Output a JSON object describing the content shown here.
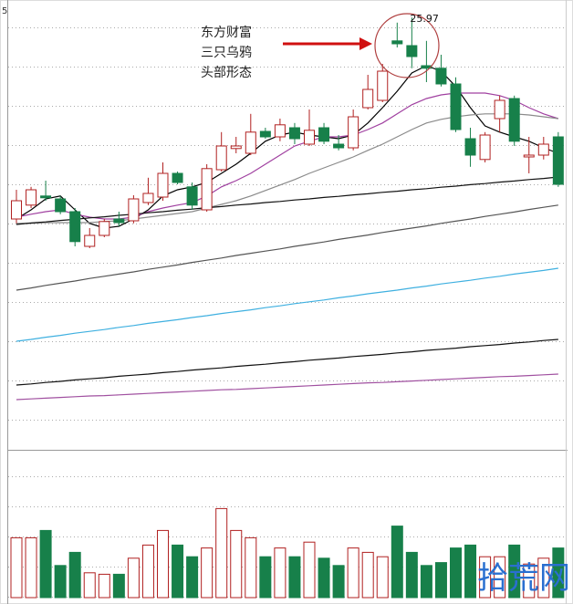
{
  "chart_data": {
    "type": "candlestick",
    "corner_label": "5",
    "annotations": [
      "东方财富",
      "三只乌鸦",
      "头部形态"
    ],
    "watermark": "拾荒网",
    "up_color": "#b02020",
    "down_color": "#17804a",
    "ylim": [
      14.2,
      26.2
    ],
    "vlim": [
      0,
      100
    ],
    "grid": true,
    "open": [
      20.45,
      20.83,
      21.08,
      21.0,
      20.65,
      19.7,
      20.0,
      20.45,
      20.4,
      20.9,
      21.05,
      21.7,
      21.33,
      20.7,
      21.8,
      22.38,
      22.25,
      22.85,
      22.7,
      22.95,
      22.5,
      22.95,
      22.5,
      22.4,
      23.5,
      23.7,
      25.33,
      25.2,
      24.65,
      24.58,
      24.15,
      22.65,
      22.08,
      23.2,
      23.75,
      22.15,
      22.2,
      22.7
    ],
    "high": [
      21.25,
      21.33,
      21.5,
      21.08,
      20.75,
      20.2,
      20.45,
      20.65,
      21.1,
      21.58,
      22.0,
      21.75,
      21.45,
      21.95,
      22.83,
      22.7,
      23.33,
      22.95,
      23.2,
      23.08,
      23.45,
      23.08,
      22.75,
      23.45,
      24.4,
      24.7,
      25.83,
      25.97,
      25.33,
      24.95,
      24.33,
      22.95,
      22.83,
      23.83,
      23.83,
      22.7,
      22.7,
      22.83
    ],
    "low": [
      20.33,
      20.75,
      20.95,
      20.58,
      19.7,
      19.65,
      19.95,
      20.25,
      20.33,
      20.83,
      20.95,
      21.4,
      20.7,
      20.65,
      21.75,
      22.25,
      22.2,
      22.65,
      22.58,
      22.5,
      22.45,
      22.5,
      22.33,
      22.33,
      23.45,
      23.65,
      25.15,
      24.58,
      24.2,
      24.08,
      22.83,
      21.88,
      22.0,
      22.83,
      22.45,
      21.7,
      22.08,
      21.33
    ],
    "close": [
      20.95,
      21.25,
      21.03,
      20.65,
      19.83,
      20.0,
      20.38,
      20.35,
      21.0,
      21.15,
      21.7,
      21.45,
      20.83,
      21.83,
      22.45,
      22.45,
      22.83,
      22.7,
      23.03,
      22.65,
      22.88,
      22.58,
      22.4,
      23.25,
      24.0,
      24.5,
      25.25,
      24.9,
      24.58,
      24.15,
      22.9,
      22.2,
      22.75,
      23.7,
      22.58,
      22.2,
      22.5,
      21.4
    ],
    "volume": [
      41,
      41,
      46,
      22,
      31,
      17,
      16,
      16,
      27,
      36,
      46,
      36,
      28,
      34,
      61,
      46,
      41,
      28,
      34,
      28,
      38,
      27,
      22,
      34,
      31,
      28,
      49,
      31,
      22,
      24,
      34,
      36,
      28,
      28,
      36,
      23,
      27,
      34
    ],
    "series": [
      {
        "color": "#000000",
        "values": [
          20.45,
          20.7,
          21.0,
          21.08,
          20.7,
          20.33,
          20.2,
          20.25,
          20.45,
          20.7,
          21.08,
          21.25,
          21.33,
          21.45,
          21.7,
          21.95,
          22.25,
          22.58,
          22.75,
          22.83,
          22.75,
          22.7,
          22.65,
          22.75,
          23.08,
          23.5,
          23.95,
          24.45,
          24.65,
          24.5,
          24.08,
          23.5,
          23.0,
          22.83,
          22.7,
          22.58,
          22.4,
          22.25
        ]
      },
      {
        "color": "#a040a0",
        "values": [
          20.5,
          20.58,
          20.65,
          20.7,
          20.58,
          20.5,
          20.45,
          20.45,
          20.5,
          20.65,
          20.75,
          20.83,
          20.9,
          21.08,
          21.33,
          21.5,
          21.7,
          21.95,
          22.2,
          22.45,
          22.58,
          22.7,
          22.7,
          22.75,
          22.9,
          23.08,
          23.33,
          23.58,
          23.75,
          23.85,
          23.9,
          23.9,
          23.9,
          23.83,
          23.7,
          23.5,
          23.33,
          23.2
        ]
      },
      {
        "color": "#8a8a8a",
        "values": [
          20.33,
          20.33,
          20.35,
          20.35,
          20.35,
          20.35,
          20.38,
          20.4,
          20.45,
          20.5,
          20.55,
          20.6,
          20.65,
          20.75,
          20.85,
          20.95,
          21.08,
          21.23,
          21.38,
          21.53,
          21.7,
          21.85,
          22.0,
          22.15,
          22.33,
          22.5,
          22.7,
          22.9,
          23.08,
          23.18,
          23.25,
          23.3,
          23.33,
          23.33,
          23.33,
          23.3,
          23.25,
          23.2
        ]
      },
      {
        "color": "#111111",
        "values": [
          20.3,
          20.34,
          20.37,
          20.41,
          20.44,
          20.48,
          20.51,
          20.55,
          20.58,
          20.62,
          20.65,
          20.69,
          20.72,
          20.76,
          20.79,
          20.83,
          20.86,
          20.9,
          20.93,
          20.97,
          21.0,
          21.04,
          21.07,
          21.11,
          21.14,
          21.18,
          21.21,
          21.25,
          21.28,
          21.32,
          21.35,
          21.39,
          21.42,
          21.46,
          21.49,
          21.53,
          21.56,
          21.6
        ]
      },
      {
        "color": "#555555",
        "values": [
          18.5,
          18.56,
          18.63,
          18.69,
          18.75,
          18.82,
          18.88,
          18.94,
          19.0,
          19.07,
          19.13,
          19.19,
          19.26,
          19.32,
          19.38,
          19.45,
          19.51,
          19.57,
          19.63,
          19.7,
          19.76,
          19.82,
          19.89,
          19.95,
          20.01,
          20.08,
          20.14,
          20.2,
          20.26,
          20.33,
          20.39,
          20.45,
          20.52,
          20.58,
          20.64,
          20.71,
          20.77,
          20.83
        ]
      },
      {
        "color": "#3fb0e0",
        "values": [
          17.1,
          17.15,
          17.21,
          17.26,
          17.32,
          17.37,
          17.42,
          17.48,
          17.53,
          17.59,
          17.64,
          17.69,
          17.75,
          17.8,
          17.86,
          17.91,
          17.96,
          18.02,
          18.07,
          18.13,
          18.18,
          18.23,
          18.29,
          18.34,
          18.4,
          18.45,
          18.5,
          18.56,
          18.61,
          18.67,
          18.72,
          18.77,
          18.83,
          18.88,
          18.94,
          18.99,
          19.04,
          19.1
        ]
      },
      {
        "color": "#111111",
        "values": [
          15.9,
          15.93,
          15.97,
          16.0,
          16.04,
          16.07,
          16.1,
          16.14,
          16.17,
          16.2,
          16.24,
          16.27,
          16.31,
          16.34,
          16.37,
          16.41,
          16.44,
          16.47,
          16.51,
          16.54,
          16.58,
          16.61,
          16.64,
          16.68,
          16.71,
          16.74,
          16.78,
          16.81,
          16.85,
          16.88,
          16.91,
          16.95,
          16.98,
          17.01,
          17.05,
          17.08,
          17.12,
          17.15
        ]
      },
      {
        "color": "#a050a0",
        "values": [
          15.5,
          15.52,
          15.54,
          15.56,
          15.58,
          15.6,
          15.61,
          15.63,
          15.65,
          15.67,
          15.69,
          15.71,
          15.73,
          15.75,
          15.77,
          15.78,
          15.8,
          15.82,
          15.84,
          15.86,
          15.88,
          15.9,
          15.92,
          15.94,
          15.96,
          15.97,
          15.99,
          16.01,
          16.03,
          16.05,
          16.07,
          16.09,
          16.11,
          16.13,
          16.14,
          16.16,
          16.18,
          16.2
        ]
      }
    ]
  }
}
